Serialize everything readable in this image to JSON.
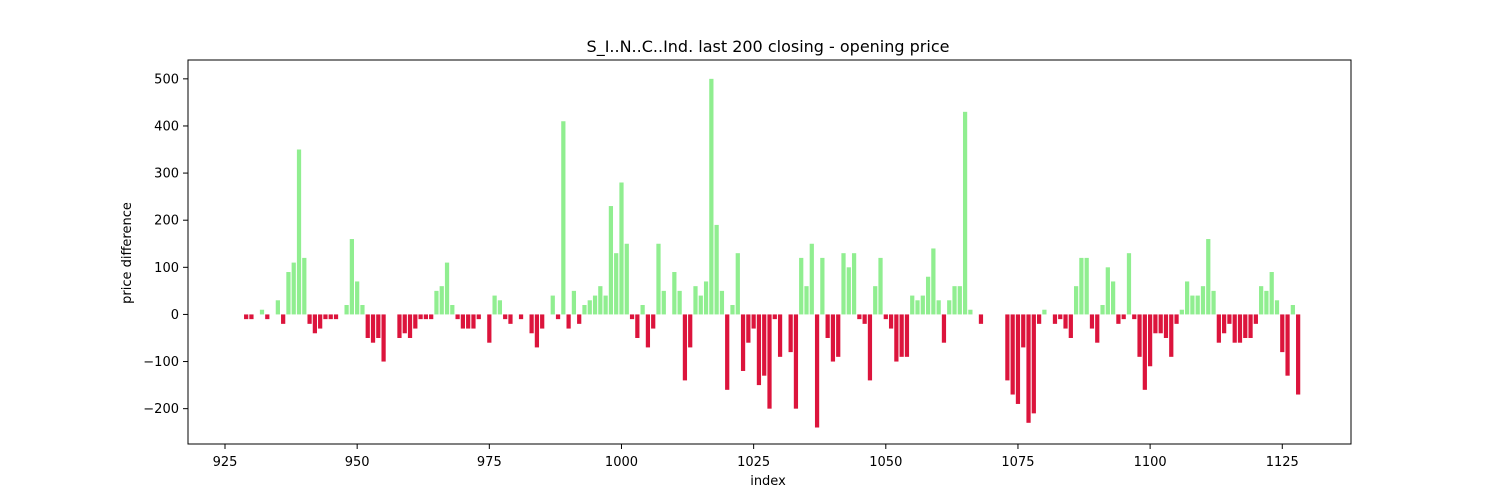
{
  "chart_data": {
    "type": "bar",
    "title": "S_I..N..C..Ind. last 200 closing - opening price",
    "xlabel": "index",
    "ylabel": "price difference",
    "xlim": [
      918,
      1138
    ],
    "ylim": [
      -275,
      540
    ],
    "x_ticks": [
      925,
      950,
      975,
      1000,
      1025,
      1050,
      1075,
      1100,
      1125
    ],
    "y_ticks": [
      -200,
      -100,
      0,
      100,
      200,
      300,
      400,
      500
    ],
    "colors": {
      "positive": "#90ee90",
      "negative": "#dc143c"
    },
    "x": [
      929,
      930,
      932,
      933,
      935,
      936,
      937,
      938,
      939,
      940,
      941,
      942,
      943,
      944,
      945,
      946,
      948,
      949,
      950,
      951,
      952,
      953,
      954,
      955,
      958,
      959,
      960,
      961,
      962,
      963,
      964,
      965,
      966,
      967,
      968,
      969,
      970,
      971,
      972,
      973,
      975,
      976,
      977,
      978,
      979,
      981,
      983,
      984,
      985,
      987,
      988,
      989,
      990,
      991,
      992,
      993,
      994,
      995,
      996,
      997,
      998,
      999,
      1000,
      1001,
      1002,
      1003,
      1004,
      1005,
      1006,
      1007,
      1008,
      1010,
      1011,
      1012,
      1013,
      1014,
      1015,
      1016,
      1017,
      1018,
      1019,
      1020,
      1021,
      1022,
      1023,
      1024,
      1025,
      1026,
      1027,
      1028,
      1029,
      1030,
      1032,
      1033,
      1034,
      1035,
      1036,
      1037,
      1038,
      1039,
      1040,
      1041,
      1042,
      1043,
      1044,
      1045,
      1046,
      1047,
      1048,
      1049,
      1050,
      1051,
      1052,
      1053,
      1054,
      1055,
      1056,
      1057,
      1058,
      1059,
      1060,
      1061,
      1062,
      1063,
      1064,
      1065,
      1066,
      1068,
      1073,
      1074,
      1075,
      1076,
      1077,
      1078,
      1079,
      1080,
      1082,
      1083,
      1084,
      1085,
      1086,
      1087,
      1088,
      1089,
      1090,
      1091,
      1092,
      1093,
      1094,
      1095,
      1096,
      1097,
      1098,
      1099,
      1100,
      1101,
      1102,
      1103,
      1104,
      1105,
      1106,
      1107,
      1108,
      1109,
      1110,
      1111,
      1112,
      1113,
      1114,
      1115,
      1116,
      1117,
      1118,
      1119,
      1120,
      1121,
      1122,
      1123,
      1124,
      1125,
      1126,
      1127,
      1128
    ],
    "values": [
      -10,
      -10,
      10,
      -10,
      30,
      -20,
      90,
      110,
      350,
      120,
      -20,
      -40,
      -30,
      -10,
      -10,
      -10,
      20,
      160,
      70,
      20,
      -50,
      -60,
      -50,
      -100,
      -50,
      -40,
      -50,
      -30,
      -10,
      -10,
      -10,
      50,
      60,
      110,
      20,
      -10,
      -30,
      -30,
      -30,
      -10,
      -60,
      40,
      30,
      -10,
      -20,
      -10,
      -40,
      -70,
      -30,
      40,
      -10,
      410,
      -30,
      50,
      -20,
      20,
      30,
      40,
      60,
      40,
      230,
      130,
      280,
      150,
      -10,
      -50,
      20,
      -70,
      -30,
      150,
      50,
      90,
      50,
      -140,
      -70,
      60,
      40,
      70,
      500,
      190,
      50,
      -160,
      20,
      130,
      -120,
      -60,
      -30,
      -150,
      -130,
      -200,
      -10,
      -90,
      -80,
      -200,
      120,
      60,
      150,
      -240,
      120,
      -50,
      -100,
      -90,
      130,
      100,
      130,
      -10,
      -20,
      -140,
      60,
      120,
      -10,
      -30,
      -100,
      -90,
      -90,
      40,
      30,
      40,
      80,
      140,
      30,
      -60,
      30,
      60,
      60,
      430,
      10,
      -20,
      -140,
      -170,
      -190,
      -70,
      -230,
      -210,
      -20,
      10,
      -20,
      -10,
      -30,
      -50,
      60,
      120,
      120,
      -30,
      -60,
      20,
      100,
      70,
      -20,
      -10,
      130,
      -10,
      -90,
      -160,
      -110,
      -40,
      -40,
      -50,
      -90,
      -20,
      10,
      70,
      40,
      40,
      60,
      160,
      50,
      -60,
      -40,
      -20,
      -60,
      -60,
      -50,
      -50,
      -20,
      60,
      50,
      90,
      30,
      -80,
      -130,
      20,
      -170
    ]
  }
}
